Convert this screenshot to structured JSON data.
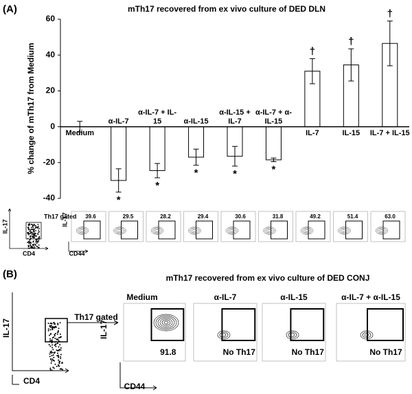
{
  "chart_data": {
    "type": "bar",
    "panel_label": "(A)",
    "title": "mTh17 recovered from ex vivo culture of DED DLN",
    "ylabel": "% change of mTh17 from Medium",
    "categories": [
      "Medium",
      "α-IL-7",
      "α-IL-7 + IL-15",
      "α-IL-15",
      "α-IL-15 + IL-7",
      "α-IL-7 + α-IL-15",
      "IL-7",
      "IL-15",
      "IL-7 + IL-15"
    ],
    "values": [
      0,
      -30,
      -24.5,
      -17,
      -16.5,
      -18.5,
      31,
      34.5,
      46.5
    ],
    "errors": [
      3,
      6.5,
      4,
      4.5,
      5.5,
      1,
      7,
      9,
      12.5
    ],
    "annotations": [
      null,
      "*",
      "*",
      "*",
      "*",
      "*",
      "†",
      "†",
      "†"
    ],
    "ylim": [
      -40,
      60
    ],
    "yticks": [
      -40,
      -20,
      0,
      20,
      40,
      60
    ],
    "color": "#ffffff",
    "grid": false
  },
  "dln_flow": {
    "y_label": "IL-17",
    "x_label": "CD4",
    "gate_label": "Th17 gated",
    "gated_y_label": "IL-17",
    "gated_x_label": "CD44",
    "gate_percentages": [
      "39.6",
      "29.5",
      "28.2",
      "29.4",
      "30.6",
      "31.8",
      "49.2",
      "51.4",
      "63.0"
    ]
  },
  "conj_flow": {
    "panel_label": "(B)",
    "title": "mTh17 recovered from ex vivo culture of DED CONJ",
    "y_label": "IL-17",
    "x_label": "CD4",
    "gate_label": "Th17 gated",
    "gated_y_label": "IL-17",
    "gated_x_label": "CD44",
    "conditions": [
      "Medium",
      "α-IL-7",
      "α-IL-15",
      "α-IL-7 + α-IL-15"
    ],
    "results": [
      "91.8",
      "No Th17",
      "No Th17",
      "No Th17"
    ]
  }
}
